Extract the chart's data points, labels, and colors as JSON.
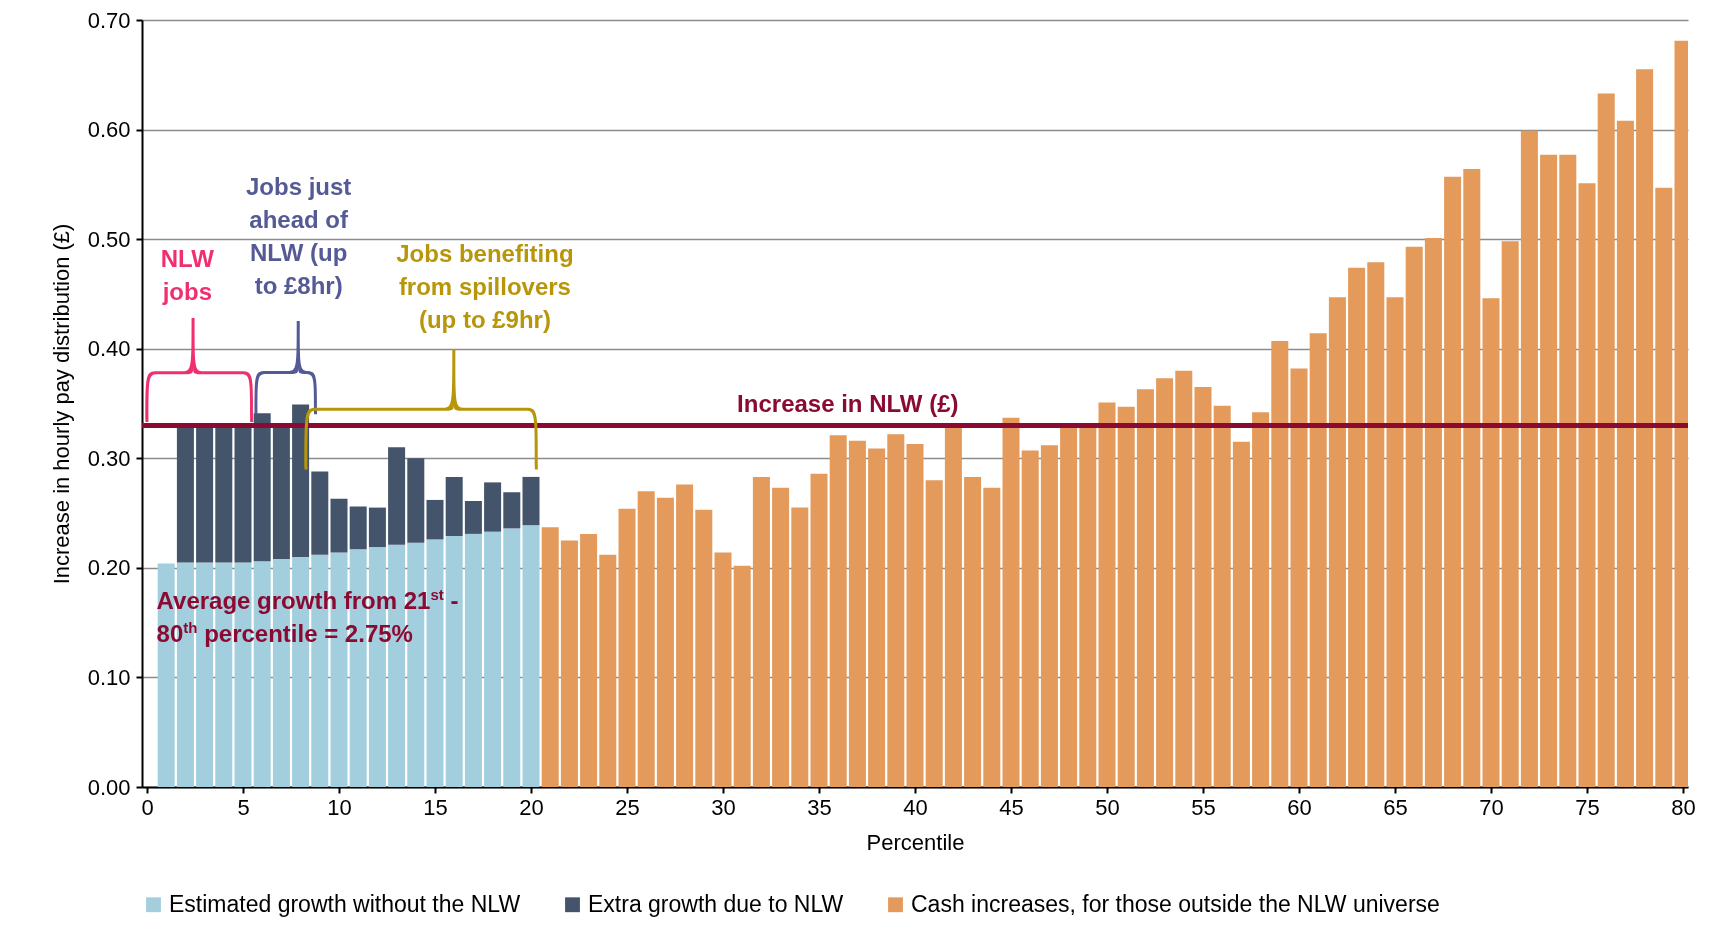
{
  "chart_data": {
    "type": "bar",
    "stacked": true,
    "xlabel": "Percentile",
    "ylabel": "Increase in hourly pay  distribution (£)",
    "x": [
      1,
      2,
      3,
      4,
      5,
      6,
      7,
      8,
      9,
      10,
      11,
      12,
      13,
      14,
      15,
      16,
      17,
      18,
      19,
      20,
      21,
      22,
      23,
      24,
      25,
      26,
      27,
      28,
      29,
      30,
      31,
      32,
      33,
      34,
      35,
      36,
      37,
      38,
      39,
      40,
      41,
      42,
      43,
      44,
      45,
      46,
      47,
      48,
      49,
      50,
      51,
      52,
      53,
      54,
      55,
      56,
      57,
      58,
      59,
      60,
      61,
      62,
      63,
      64,
      65,
      66,
      67,
      68,
      69,
      70,
      71,
      72,
      73,
      74,
      75,
      76,
      77,
      78,
      79,
      80
    ],
    "xlim": [
      0,
      80
    ],
    "xticks": [
      0,
      5,
      10,
      15,
      20,
      25,
      30,
      35,
      40,
      45,
      50,
      55,
      60,
      65,
      70,
      75,
      80
    ],
    "ylim": [
      0,
      0.7
    ],
    "yticks": [
      {
        "value": 0,
        "label": "0.00"
      },
      {
        "value": 0.1,
        "label": "0.10"
      },
      {
        "value": 0.2,
        "label": "0.20"
      },
      {
        "value": 0.3,
        "label": "0.30"
      },
      {
        "value": 0.4,
        "label": "0.40"
      },
      {
        "value": 0.5,
        "label": "0.50"
      },
      {
        "value": 0.6,
        "label": "0.60"
      },
      {
        "value": 0.7,
        "label": "0.70"
      }
    ],
    "grid": "y",
    "legend": "bottom",
    "series": [
      {
        "name": "Estimated growth without the NLW",
        "color": "#a3cedd",
        "values": [
          0.204,
          0.205,
          0.205,
          0.205,
          0.205,
          0.206,
          0.208,
          0.21,
          0.212,
          0.214,
          0.217,
          0.219,
          0.221,
          0.223,
          0.226,
          0.229,
          0.231,
          0.233,
          0.236,
          0.239,
          null,
          null,
          null,
          null,
          null,
          null,
          null,
          null,
          null,
          null,
          null,
          null,
          null,
          null,
          null,
          null,
          null,
          null,
          null,
          null,
          null,
          null,
          null,
          null,
          null,
          null,
          null,
          null,
          null,
          null,
          null,
          null,
          null,
          null,
          null,
          null,
          null,
          null,
          null,
          null,
          null,
          null,
          null,
          null,
          null,
          null,
          null,
          null,
          null,
          null,
          null,
          null,
          null,
          null,
          null,
          null,
          null,
          null,
          null,
          null
        ]
      },
      {
        "name": "Extra growth due to NLW",
        "color": "#44546a",
        "values": [
          null,
          0.125,
          0.125,
          0.125,
          0.125,
          0.135,
          0.122,
          0.139,
          0.076,
          0.049,
          0.039,
          0.036,
          0.089,
          0.077,
          0.036,
          0.054,
          0.03,
          0.045,
          0.033,
          0.044,
          null,
          null,
          null,
          null,
          null,
          null,
          null,
          null,
          null,
          null,
          null,
          null,
          null,
          null,
          null,
          null,
          null,
          null,
          null,
          null,
          null,
          null,
          null,
          null,
          null,
          null,
          null,
          null,
          null,
          null,
          null,
          null,
          null,
          null,
          null,
          null,
          null,
          null,
          null,
          null,
          null,
          null,
          null,
          null,
          null,
          null,
          null,
          null,
          null,
          null,
          null,
          null,
          null,
          null,
          null,
          null,
          null,
          null,
          null,
          null
        ]
      },
      {
        "name": "Cash increases, for those outside the NLW universe",
        "color": "#e39a5b",
        "values": [
          null,
          null,
          null,
          null,
          null,
          null,
          null,
          null,
          null,
          null,
          null,
          null,
          null,
          null,
          null,
          null,
          null,
          null,
          null,
          null,
          0.237,
          0.225,
          0.231,
          0.212,
          0.254,
          0.27,
          0.264,
          0.276,
          0.253,
          0.214,
          0.202,
          0.283,
          0.273,
          0.255,
          0.286,
          0.321,
          0.316,
          0.309,
          0.322,
          0.313,
          0.28,
          0.33,
          0.283,
          0.273,
          0.337,
          0.307,
          0.312,
          0.33,
          0.33,
          0.351,
          0.347,
          0.363,
          0.373,
          0.38,
          0.365,
          0.348,
          0.315,
          0.342,
          0.407,
          0.382,
          0.414,
          0.447,
          0.474,
          0.479,
          0.447,
          0.493,
          0.501,
          0.557,
          0.564,
          0.446,
          0.498,
          0.599,
          0.577,
          0.577,
          0.551,
          0.633,
          0.608,
          0.655,
          0.547,
          0.681
        ]
      }
    ],
    "ref_lines": [
      {
        "axis": "y",
        "value": 0.33,
        "label": "Increase in NLW (£)",
        "color": "#8b0a32"
      }
    ],
    "annotations": [
      "NLW jobs",
      "Jobs just ahead of NLW (up to £8hr)",
      "Jobs benefiting from spillovers (up to £9hr)",
      "Average growth from 21$^{st}$ - 80$^{th}$ percentile = 2.75%"
    ]
  }
}
